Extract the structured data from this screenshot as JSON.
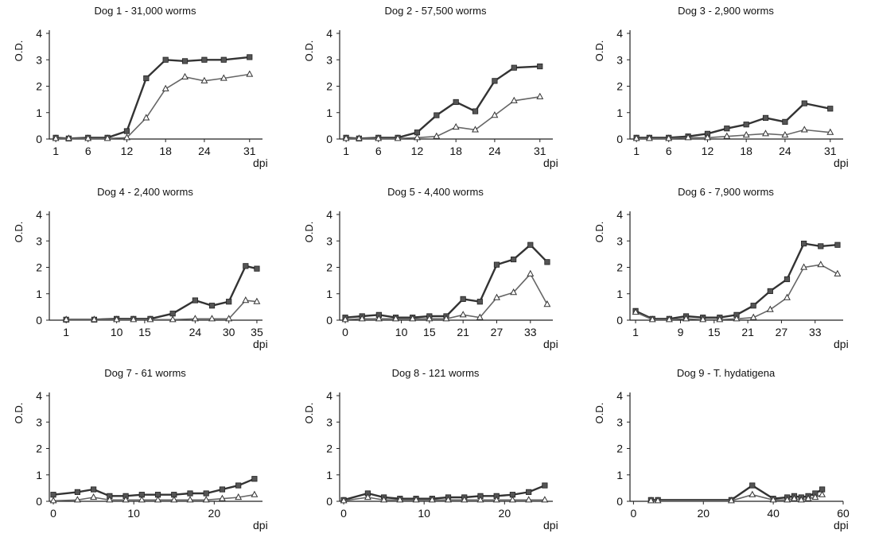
{
  "chart_data": [
    {
      "type": "line",
      "title": "Dog 1 - 31,000 worms",
      "ylabel": "O.D.",
      "xlabel": "dpi",
      "ylim": [
        0,
        4
      ],
      "yticks": [
        0,
        1,
        2,
        3,
        4
      ],
      "xlim": [
        0,
        33
      ],
      "xticks": [
        1,
        6,
        12,
        18,
        24,
        31
      ],
      "series": [
        {
          "marker": "square",
          "x": [
            1,
            3,
            6,
            9,
            12,
            15,
            18,
            21,
            24,
            27,
            31
          ],
          "y": [
            0.05,
            0.02,
            0.05,
            0.05,
            0.3,
            2.3,
            3.0,
            2.95,
            3.0,
            3.0,
            3.1
          ]
        },
        {
          "marker": "triangle",
          "x": [
            1,
            3,
            6,
            9,
            12,
            15,
            18,
            21,
            24,
            27,
            31
          ],
          "y": [
            0.02,
            0.02,
            0.02,
            0.02,
            0.05,
            0.8,
            1.9,
            2.35,
            2.2,
            2.3,
            2.45
          ]
        }
      ]
    },
    {
      "type": "line",
      "title": "Dog 2 - 57,500 worms",
      "ylabel": "O.D.",
      "xlabel": "dpi",
      "ylim": [
        0,
        4
      ],
      "yticks": [
        0,
        1,
        2,
        3,
        4
      ],
      "xlim": [
        0,
        33
      ],
      "xticks": [
        1,
        6,
        12,
        18,
        24,
        31
      ],
      "series": [
        {
          "marker": "square",
          "x": [
            1,
            3,
            6,
            9,
            12,
            15,
            18,
            21,
            24,
            27,
            31
          ],
          "y": [
            0.05,
            0.02,
            0.05,
            0.05,
            0.25,
            0.9,
            1.4,
            1.05,
            2.2,
            2.7,
            2.75
          ]
        },
        {
          "marker": "triangle",
          "x": [
            1,
            3,
            6,
            9,
            12,
            15,
            18,
            21,
            24,
            27,
            31
          ],
          "y": [
            0.02,
            0.02,
            0.02,
            0.02,
            0.05,
            0.1,
            0.45,
            0.35,
            0.9,
            1.45,
            1.6
          ]
        }
      ]
    },
    {
      "type": "line",
      "title": "Dog 3 - 2,900 worms",
      "ylabel": "O.D.",
      "xlabel": "dpi",
      "ylim": [
        0,
        4
      ],
      "yticks": [
        0,
        1,
        2,
        3,
        4
      ],
      "xlim": [
        0,
        33
      ],
      "xticks": [
        1,
        6,
        12,
        18,
        24,
        31
      ],
      "series": [
        {
          "marker": "square",
          "x": [
            1,
            3,
            6,
            9,
            12,
            15,
            18,
            21,
            24,
            27,
            31
          ],
          "y": [
            0.05,
            0.05,
            0.05,
            0.1,
            0.2,
            0.4,
            0.55,
            0.8,
            0.65,
            1.35,
            1.15
          ]
        },
        {
          "marker": "triangle",
          "x": [
            1,
            3,
            6,
            9,
            12,
            15,
            18,
            21,
            24,
            27,
            31
          ],
          "y": [
            0.02,
            0.02,
            0.02,
            0.05,
            0.05,
            0.1,
            0.15,
            0.2,
            0.15,
            0.35,
            0.25
          ]
        }
      ]
    },
    {
      "type": "line",
      "title": "Dog 4 - 2,400 worms",
      "ylabel": "O.D.",
      "xlabel": "dpi",
      "ylim": [
        0,
        4
      ],
      "yticks": [
        0,
        1,
        2,
        3,
        4
      ],
      "xlim": [
        -2,
        36
      ],
      "xticks": [
        1,
        10,
        15,
        24,
        30,
        35
      ],
      "series": [
        {
          "marker": "square",
          "x": [
            1,
            6,
            10,
            13,
            16,
            20,
            24,
            27,
            30,
            33,
            35
          ],
          "y": [
            0.02,
            0.02,
            0.05,
            0.05,
            0.05,
            0.25,
            0.75,
            0.55,
            0.7,
            2.05,
            1.95
          ]
        },
        {
          "marker": "triangle",
          "x": [
            1,
            6,
            10,
            13,
            16,
            20,
            24,
            27,
            30,
            33,
            35
          ],
          "y": [
            0.02,
            0.02,
            0.02,
            0.02,
            0.02,
            0.02,
            0.05,
            0.05,
            0.05,
            0.75,
            0.7
          ]
        }
      ]
    },
    {
      "type": "line",
      "title": "Dog 5 - 4,400 worms",
      "ylabel": "O.D.",
      "xlabel": "dpi",
      "ylim": [
        0,
        4
      ],
      "yticks": [
        0,
        1,
        2,
        3,
        4
      ],
      "xlim": [
        -1,
        37
      ],
      "xticks": [
        0,
        10,
        15,
        21,
        27,
        33
      ],
      "series": [
        {
          "marker": "square",
          "x": [
            0,
            3,
            6,
            9,
            12,
            15,
            18,
            21,
            24,
            27,
            30,
            33,
            36
          ],
          "y": [
            0.1,
            0.15,
            0.2,
            0.1,
            0.1,
            0.15,
            0.15,
            0.8,
            0.7,
            2.1,
            2.3,
            2.85,
            2.2
          ]
        },
        {
          "marker": "triangle",
          "x": [
            0,
            3,
            6,
            9,
            12,
            15,
            18,
            21,
            24,
            27,
            30,
            33,
            36
          ],
          "y": [
            0.02,
            0.05,
            0.05,
            0.05,
            0.05,
            0.05,
            0.05,
            0.2,
            0.1,
            0.85,
            1.05,
            1.75,
            0.6
          ]
        }
      ]
    },
    {
      "type": "line",
      "title": "Dog 6 - 7,900 worms",
      "ylabel": "O.D.",
      "xlabel": "dpi",
      "ylim": [
        0,
        4
      ],
      "yticks": [
        0,
        1,
        2,
        3,
        4
      ],
      "xlim": [
        0,
        38
      ],
      "xticks": [
        1,
        9,
        15,
        21,
        27,
        33
      ],
      "series": [
        {
          "marker": "square",
          "x": [
            1,
            4,
            7,
            10,
            13,
            16,
            19,
            22,
            25,
            28,
            31,
            34,
            37
          ],
          "y": [
            0.35,
            0.05,
            0.05,
            0.15,
            0.1,
            0.1,
            0.2,
            0.55,
            1.1,
            1.55,
            2.9,
            2.8,
            2.85
          ]
        },
        {
          "marker": "triangle",
          "x": [
            1,
            4,
            7,
            10,
            13,
            16,
            19,
            22,
            25,
            28,
            31,
            34,
            37
          ],
          "y": [
            0.3,
            0.02,
            0.02,
            0.05,
            0.02,
            0.02,
            0.05,
            0.1,
            0.4,
            0.85,
            2.0,
            2.1,
            1.75
          ]
        }
      ]
    },
    {
      "type": "line",
      "title": "Dog 7 - 61 worms",
      "ylabel": "O.D.",
      "xlabel": "dpi",
      "ylim": [
        0,
        4
      ],
      "yticks": [
        0,
        1,
        2,
        3,
        4
      ],
      "xlim": [
        -0.5,
        26
      ],
      "xticks": [
        0,
        10,
        20
      ],
      "series": [
        {
          "marker": "square",
          "x": [
            0,
            3,
            5,
            7,
            9,
            11,
            13,
            15,
            17,
            19,
            21,
            23,
            25
          ],
          "y": [
            0.25,
            0.35,
            0.45,
            0.2,
            0.2,
            0.25,
            0.25,
            0.25,
            0.3,
            0.3,
            0.45,
            0.6,
            0.85
          ]
        },
        {
          "marker": "triangle",
          "x": [
            0,
            3,
            5,
            7,
            9,
            11,
            13,
            15,
            17,
            19,
            21,
            23,
            25
          ],
          "y": [
            0.02,
            0.05,
            0.15,
            0.05,
            0.05,
            0.05,
            0.05,
            0.05,
            0.05,
            0.05,
            0.1,
            0.15,
            0.25
          ]
        }
      ]
    },
    {
      "type": "line",
      "title": "Dog 8 - 121 worms",
      "ylabel": "O.D.",
      "xlabel": "dpi",
      "ylim": [
        0,
        4
      ],
      "yticks": [
        0,
        1,
        2,
        3,
        4
      ],
      "xlim": [
        -0.5,
        26
      ],
      "xticks": [
        0,
        10,
        20
      ],
      "series": [
        {
          "marker": "square",
          "x": [
            0,
            3,
            5,
            7,
            9,
            11,
            13,
            15,
            17,
            19,
            21,
            23,
            25
          ],
          "y": [
            0.05,
            0.3,
            0.15,
            0.1,
            0.1,
            0.1,
            0.15,
            0.15,
            0.2,
            0.2,
            0.25,
            0.35,
            0.6
          ]
        },
        {
          "marker": "triangle",
          "x": [
            0,
            3,
            5,
            7,
            9,
            11,
            13,
            15,
            17,
            19,
            21,
            23,
            25
          ],
          "y": [
            0.02,
            0.15,
            0.05,
            0.05,
            0.05,
            0.05,
            0.05,
            0.05,
            0.05,
            0.05,
            0.05,
            0.05,
            0.05
          ]
        }
      ]
    },
    {
      "type": "line",
      "title": "Dog 9 - T. hydatigena",
      "ylabel": "O.D.",
      "xlabel": "dpi",
      "ylim": [
        0,
        4
      ],
      "yticks": [
        0,
        1,
        2,
        3,
        4
      ],
      "xlim": [
        -1,
        60
      ],
      "xticks": [
        0,
        20,
        40,
        60
      ],
      "series": [
        {
          "marker": "square",
          "x": [
            5,
            7,
            28,
            34,
            40,
            44,
            46,
            48,
            50,
            52,
            54
          ],
          "y": [
            0.05,
            0.05,
            0.05,
            0.6,
            0.1,
            0.15,
            0.2,
            0.15,
            0.2,
            0.3,
            0.45
          ]
        },
        {
          "marker": "triangle",
          "x": [
            5,
            7,
            28,
            34,
            40,
            44,
            46,
            48,
            50,
            52,
            54
          ],
          "y": [
            0.02,
            0.02,
            0.02,
            0.25,
            0.05,
            0.05,
            0.1,
            0.05,
            0.1,
            0.15,
            0.25
          ]
        }
      ]
    }
  ]
}
